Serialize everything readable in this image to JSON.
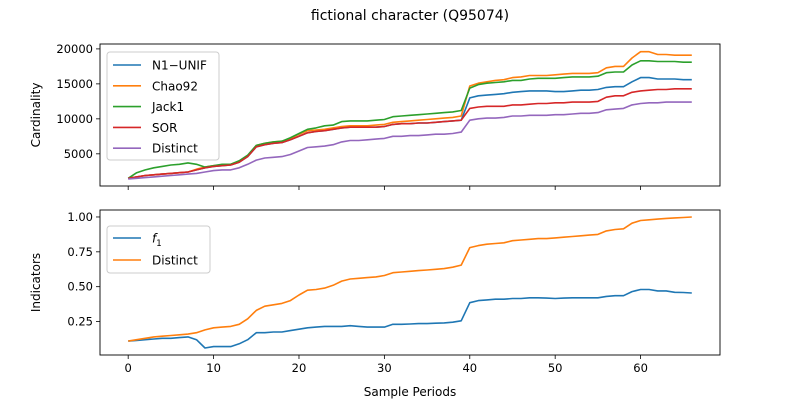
{
  "figure": {
    "title": "fictional character (Q95074)",
    "xlabel": "Sample Periods"
  },
  "chart_data": [
    {
      "type": "line",
      "ylabel": "Cardinality",
      "xlim": [
        -3.3,
        69.3
      ],
      "ylim": [
        400,
        20700
      ],
      "xticks": [
        0,
        10,
        20,
        30,
        40,
        50,
        60
      ],
      "yticks": [
        5000,
        10000,
        15000,
        20000
      ],
      "ytick_labels": [
        "5000",
        "10000",
        "15000",
        "20000"
      ],
      "show_xtick_labels": false,
      "legend_position": "upper-left",
      "x": [
        0,
        1,
        2,
        3,
        4,
        5,
        6,
        7,
        8,
        9,
        10,
        11,
        12,
        13,
        14,
        15,
        16,
        17,
        18,
        19,
        20,
        21,
        22,
        23,
        24,
        25,
        26,
        27,
        28,
        29,
        30,
        31,
        32,
        33,
        34,
        35,
        36,
        37,
        38,
        39,
        40,
        41,
        42,
        43,
        44,
        45,
        46,
        47,
        48,
        49,
        50,
        51,
        52,
        53,
        54,
        55,
        56,
        57,
        58,
        59,
        60,
        61,
        62,
        63,
        64,
        65,
        66
      ],
      "series": [
        {
          "name": "N1−UNIF",
          "color": "#1f77b4",
          "values": [
            1500,
            1700,
            1900,
            2000,
            2100,
            2200,
            2300,
            2400,
            2700,
            3000,
            3200,
            3300,
            3400,
            3800,
            4600,
            6000,
            6300,
            6500,
            6600,
            7000,
            7500,
            8000,
            8200,
            8300,
            8500,
            8700,
            8800,
            8800,
            8800,
            8800,
            8900,
            9200,
            9300,
            9300,
            9400,
            9400,
            9500,
            9600,
            9700,
            9800,
            13000,
            13300,
            13400,
            13500,
            13600,
            13800,
            13900,
            14000,
            14000,
            14000,
            13900,
            13900,
            14000,
            14100,
            14100,
            14200,
            14500,
            14600,
            14600,
            15300,
            15900,
            15900,
            15700,
            15700,
            15700,
            15600,
            15600
          ]
        },
        {
          "name": "Chao92",
          "color": "#ff7f0e",
          "values": [
            1500,
            1700,
            1900,
            2000,
            2100,
            2200,
            2300,
            2400,
            2800,
            3100,
            3300,
            3400,
            3500,
            3900,
            4700,
            6200,
            6500,
            6700,
            6800,
            7200,
            7800,
            8300,
            8400,
            8500,
            8700,
            8900,
            9000,
            9000,
            9000,
            9100,
            9200,
            9500,
            9600,
            9700,
            9800,
            9900,
            10000,
            10100,
            10200,
            10400,
            14700,
            15100,
            15300,
            15500,
            15600,
            15900,
            16000,
            16200,
            16200,
            16200,
            16300,
            16400,
            16500,
            16500,
            16500,
            16600,
            17300,
            17500,
            17500,
            18700,
            19600,
            19600,
            19200,
            19200,
            19100,
            19100,
            19100
          ]
        },
        {
          "name": "Jack1",
          "color": "#2ca02c",
          "values": [
            1500,
            2300,
            2700,
            3000,
            3200,
            3400,
            3500,
            3700,
            3500,
            3100,
            3300,
            3500,
            3500,
            4000,
            4800,
            6200,
            6500,
            6700,
            6800,
            7300,
            7900,
            8500,
            8700,
            9000,
            9100,
            9600,
            9700,
            9700,
            9700,
            9800,
            9900,
            10300,
            10400,
            10500,
            10600,
            10700,
            10800,
            10900,
            11000,
            11200,
            14400,
            14900,
            15100,
            15200,
            15300,
            15500,
            15500,
            15700,
            15800,
            15800,
            15800,
            15900,
            16000,
            16000,
            16000,
            16100,
            16600,
            16700,
            16700,
            17700,
            18300,
            18300,
            18200,
            18200,
            18200,
            18100,
            18100
          ]
        },
        {
          "name": "SOR",
          "color": "#d62728",
          "values": [
            1500,
            1700,
            1900,
            2000,
            2100,
            2200,
            2300,
            2400,
            2700,
            3000,
            3200,
            3300,
            3400,
            3800,
            4600,
            6000,
            6300,
            6500,
            6600,
            7000,
            7500,
            8000,
            8200,
            8300,
            8500,
            8700,
            8800,
            8800,
            8800,
            8800,
            8900,
            9200,
            9300,
            9300,
            9400,
            9400,
            9500,
            9600,
            9700,
            9800,
            11500,
            11700,
            11800,
            11800,
            11800,
            12000,
            12000,
            12100,
            12200,
            12200,
            12300,
            12300,
            12400,
            12400,
            12400,
            12500,
            13100,
            13300,
            13300,
            13800,
            14000,
            14100,
            14200,
            14200,
            14300,
            14300,
            14300
          ]
        },
        {
          "name": "Distinct",
          "color": "#9467bd",
          "values": [
            1400,
            1500,
            1600,
            1700,
            1800,
            1900,
            2000,
            2100,
            2200,
            2400,
            2600,
            2700,
            2700,
            3000,
            3500,
            4100,
            4400,
            4500,
            4600,
            4900,
            5400,
            5900,
            6000,
            6100,
            6300,
            6700,
            6900,
            6900,
            7000,
            7100,
            7200,
            7500,
            7500,
            7600,
            7600,
            7700,
            7800,
            7800,
            7900,
            8100,
            9800,
            10000,
            10100,
            10100,
            10200,
            10400,
            10400,
            10500,
            10500,
            10500,
            10600,
            10600,
            10700,
            10800,
            10800,
            10900,
            11300,
            11400,
            11500,
            12000,
            12200,
            12300,
            12300,
            12400,
            12400,
            12400,
            12400
          ]
        }
      ]
    },
    {
      "type": "line",
      "ylabel": "Indicators",
      "xlim": [
        -3.3,
        69.3
      ],
      "ylim": [
        0.01,
        1.05
      ],
      "xticks": [
        0,
        10,
        20,
        30,
        40,
        50,
        60
      ],
      "xtick_labels": [
        "0",
        "10",
        "20",
        "30",
        "40",
        "50",
        "60"
      ],
      "yticks": [
        0.25,
        0.5,
        0.75,
        1.0
      ],
      "ytick_labels": [
        "0.25",
        "0.50",
        "0.75",
        "1.00"
      ],
      "legend_position": "upper-left",
      "x": [
        0,
        1,
        2,
        3,
        4,
        5,
        6,
        7,
        8,
        9,
        10,
        11,
        12,
        13,
        14,
        15,
        16,
        17,
        18,
        19,
        20,
        21,
        22,
        23,
        24,
        25,
        26,
        27,
        28,
        29,
        30,
        31,
        32,
        33,
        34,
        35,
        36,
        37,
        38,
        39,
        40,
        41,
        42,
        43,
        44,
        45,
        46,
        47,
        48,
        49,
        50,
        51,
        52,
        53,
        54,
        55,
        56,
        57,
        58,
        59,
        60,
        61,
        62,
        63,
        64,
        65,
        66
      ],
      "series": [
        {
          "name": "f1",
          "label_main": "f",
          "label_sub": "1",
          "color": "#1f77b4",
          "values": [
            0.11,
            0.115,
            0.12,
            0.125,
            0.13,
            0.13,
            0.135,
            0.14,
            0.12,
            0.06,
            0.07,
            0.07,
            0.07,
            0.09,
            0.12,
            0.17,
            0.17,
            0.175,
            0.175,
            0.185,
            0.195,
            0.205,
            0.21,
            0.215,
            0.215,
            0.215,
            0.22,
            0.215,
            0.21,
            0.21,
            0.21,
            0.23,
            0.23,
            0.232,
            0.235,
            0.235,
            0.238,
            0.24,
            0.245,
            0.255,
            0.385,
            0.4,
            0.405,
            0.41,
            0.41,
            0.415,
            0.415,
            0.42,
            0.42,
            0.418,
            0.415,
            0.418,
            0.42,
            0.42,
            0.42,
            0.42,
            0.43,
            0.435,
            0.435,
            0.465,
            0.48,
            0.48,
            0.47,
            0.47,
            0.46,
            0.458,
            0.455
          ]
        },
        {
          "name": "Distinct",
          "label_main": "Distinct",
          "label_sub": "",
          "color": "#ff7f0e",
          "values": [
            0.11,
            0.12,
            0.13,
            0.14,
            0.145,
            0.15,
            0.155,
            0.16,
            0.17,
            0.19,
            0.205,
            0.21,
            0.215,
            0.23,
            0.27,
            0.33,
            0.36,
            0.37,
            0.38,
            0.4,
            0.44,
            0.475,
            0.48,
            0.49,
            0.51,
            0.54,
            0.555,
            0.56,
            0.565,
            0.57,
            0.58,
            0.6,
            0.605,
            0.61,
            0.615,
            0.62,
            0.625,
            0.63,
            0.64,
            0.655,
            0.78,
            0.795,
            0.805,
            0.81,
            0.815,
            0.83,
            0.835,
            0.84,
            0.845,
            0.845,
            0.85,
            0.855,
            0.86,
            0.865,
            0.87,
            0.875,
            0.9,
            0.91,
            0.915,
            0.955,
            0.975,
            0.98,
            0.985,
            0.99,
            0.993,
            0.996,
            1.0
          ]
        }
      ]
    }
  ]
}
